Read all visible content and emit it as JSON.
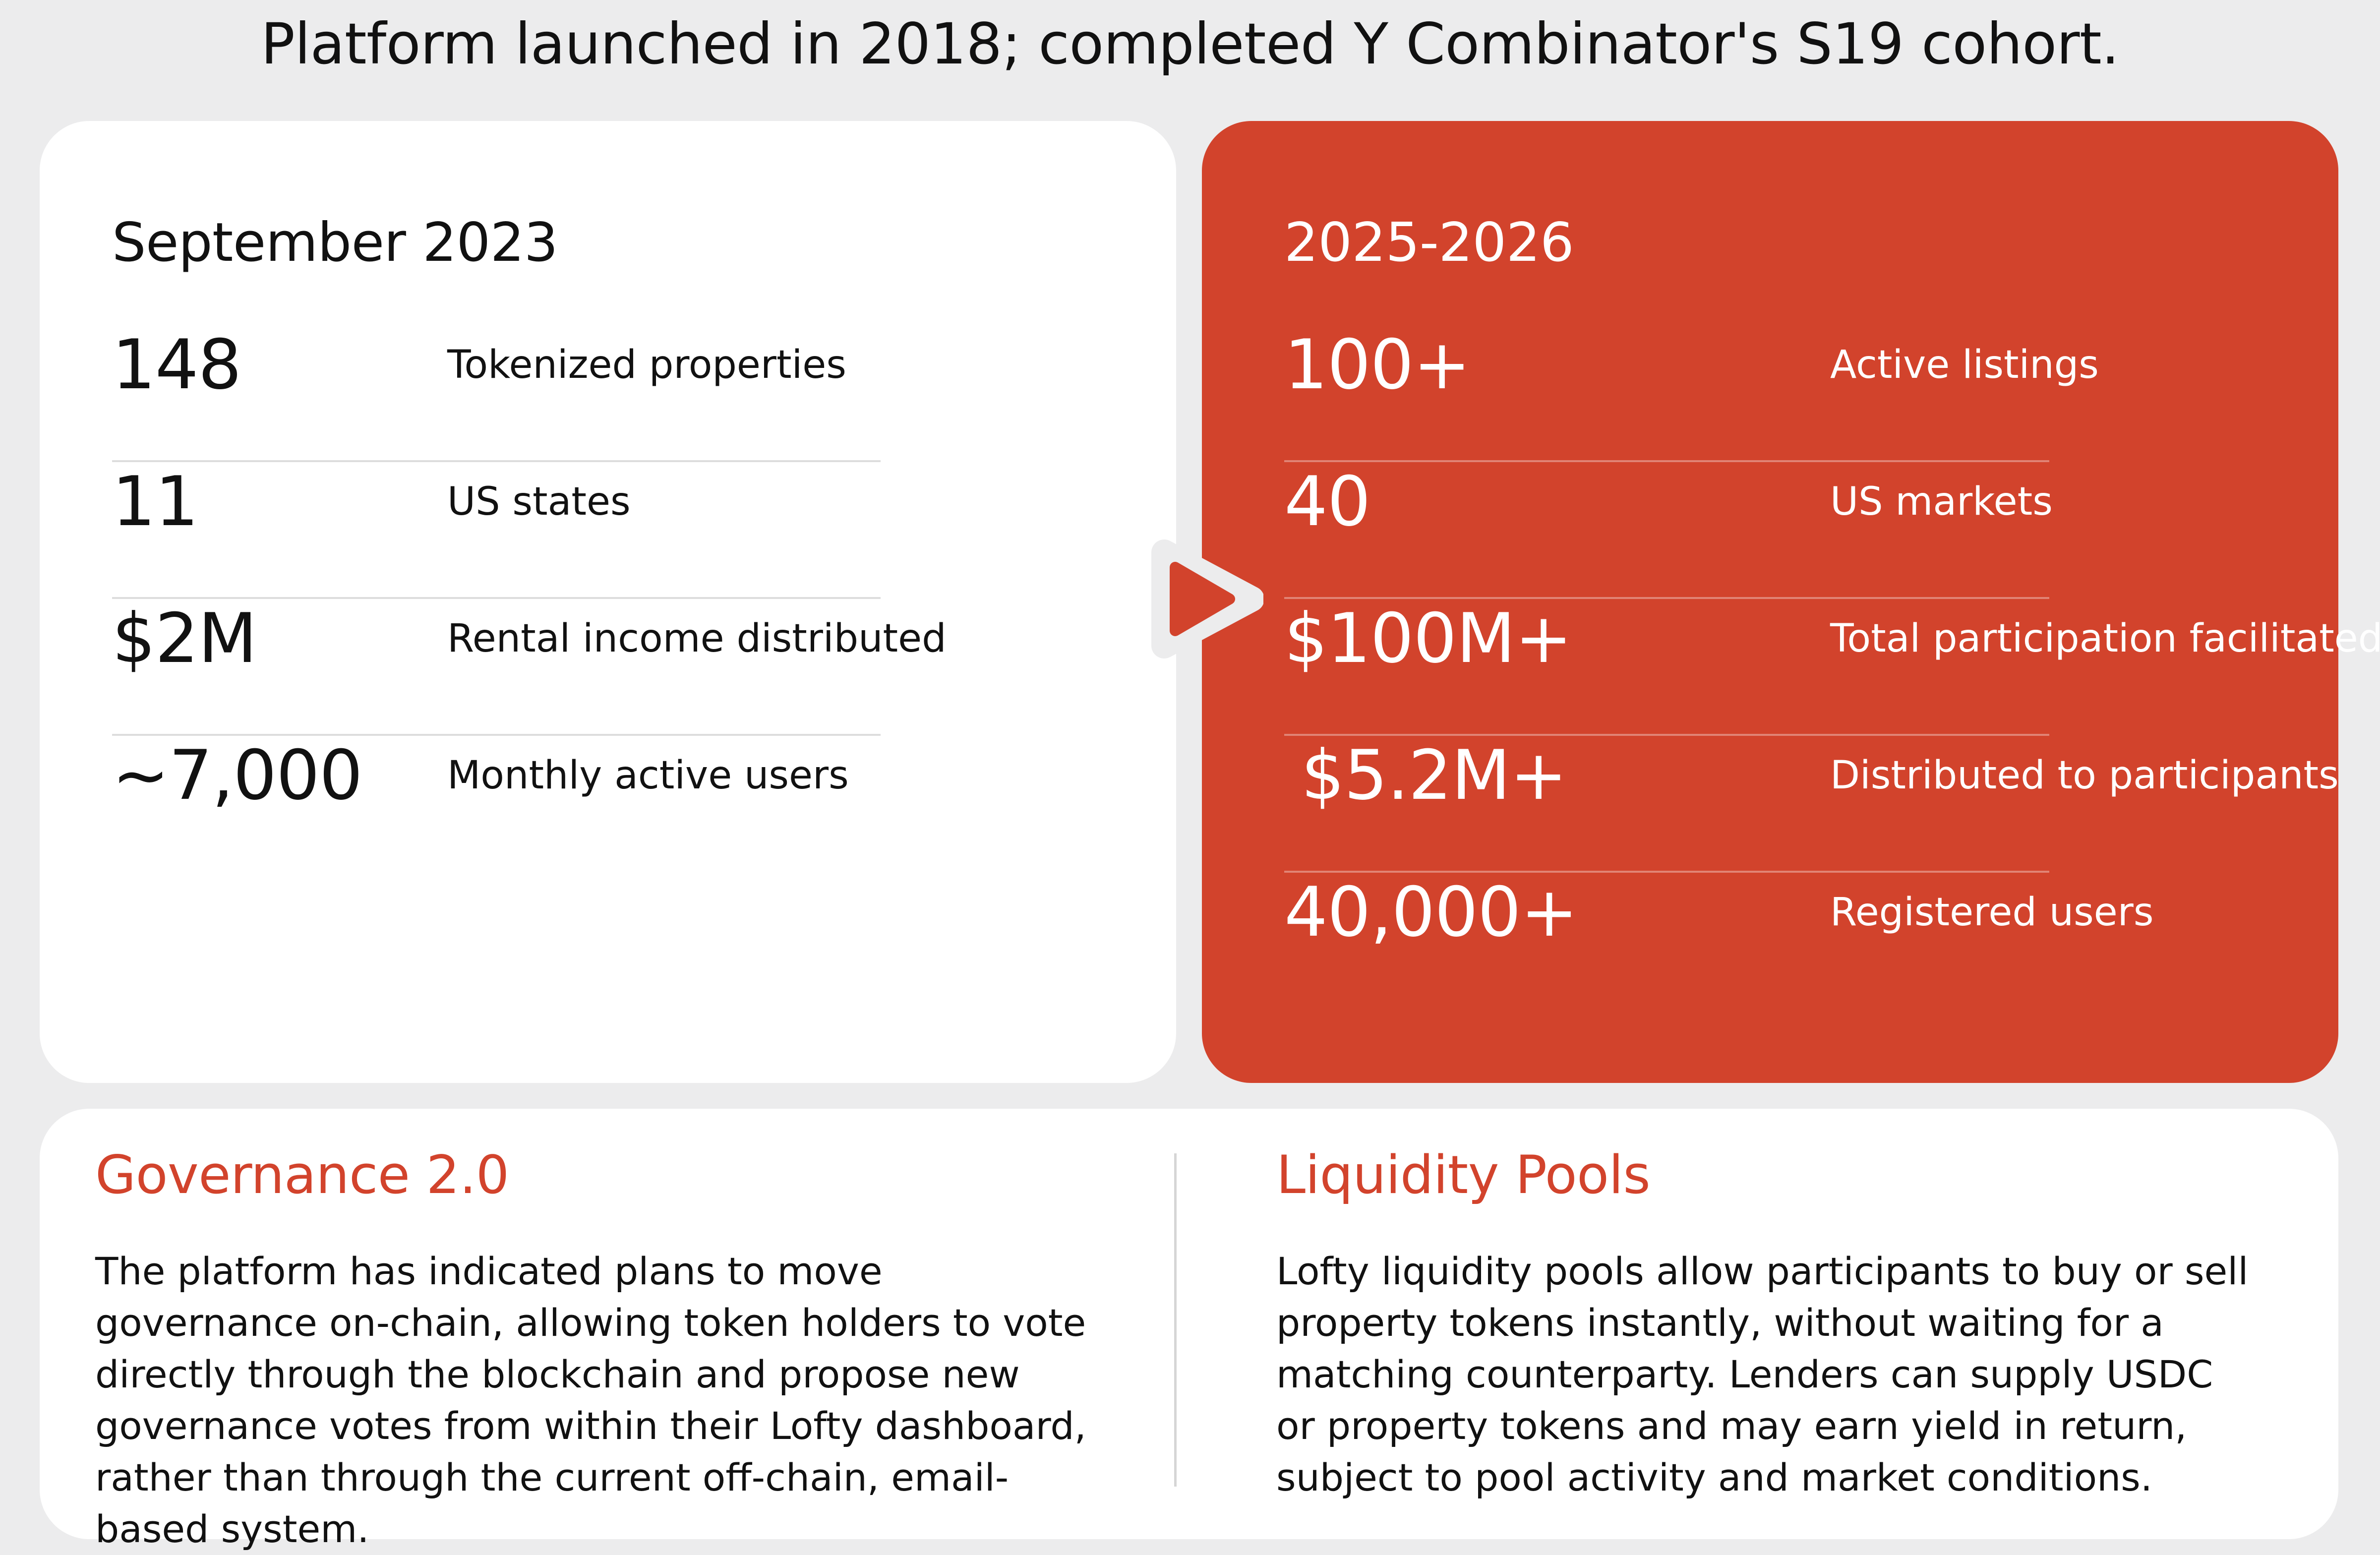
{
  "headline": "Platform launched in 2018; completed Y Combinator's S19 cohort.",
  "before": {
    "period": "September 2023",
    "stats": [
      {
        "value": "148",
        "label": "Tokenized properties"
      },
      {
        "value": "11",
        "label": "US states"
      },
      {
        "value": "$2M",
        "label": "Rental income distributed"
      },
      {
        "value": "~7,000",
        "label": "Monthly active users"
      }
    ]
  },
  "after": {
    "period": "2025-2026",
    "stats": [
      {
        "value": "100+",
        "label": "Active listings"
      },
      {
        "value": "40",
        "label": "US markets"
      },
      {
        "value": "$100M+",
        "label": "Total participation facilitated"
      },
      {
        "value": "$5.2M+",
        "label": "Distributed to participants"
      },
      {
        "value": "40,000+",
        "label": "Registered users"
      }
    ]
  },
  "initiatives": [
    {
      "title": "Governance 2.0",
      "body": "The platform has indicated plans to move governance on-chain, allowing token holders to vote directly through the blockchain and propose new governance votes from within their Lofty dashboard, rather than through the current off-chain, email-based system."
    },
    {
      "title": "Liquidity Pools",
      "body": "Lofty liquidity pools allow participants to buy or sell property tokens instantly, without waiting for a matching counterparty. Lenders can supply USDC or property tokens and may earn yield in return, subject to pool activity and market conditions."
    }
  ],
  "colors": {
    "accent": "#d2432c",
    "background": "#ececed",
    "card": "#ffffff",
    "text": "#111111"
  },
  "icons": {
    "transition": "arrow-right-icon"
  }
}
